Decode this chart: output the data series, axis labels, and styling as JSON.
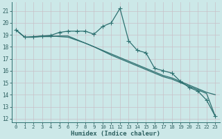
{
  "xlabel": "Humidex (Indice chaleur)",
  "bg_color": "#cce8e8",
  "grid_color": "#d8eded",
  "line_color": "#2d7070",
  "xlim": [
    -0.5,
    23.5
  ],
  "ylim": [
    11.7,
    21.7
  ],
  "yticks": [
    12,
    13,
    14,
    15,
    16,
    17,
    18,
    19,
    20,
    21
  ],
  "xticks": [
    0,
    1,
    2,
    3,
    4,
    5,
    6,
    7,
    8,
    9,
    10,
    11,
    12,
    13,
    14,
    15,
    16,
    17,
    18,
    19,
    20,
    21,
    22,
    23
  ],
  "series1_y": [
    19.4,
    18.8,
    18.8,
    18.9,
    18.95,
    19.2,
    19.3,
    19.3,
    19.3,
    19.05,
    19.7,
    20.0,
    21.2,
    18.5,
    17.7,
    17.5,
    16.2,
    16.0,
    15.8,
    15.1,
    14.6,
    14.3,
    13.55,
    12.2
  ],
  "series2_y": [
    19.4,
    18.8,
    18.85,
    18.9,
    18.9,
    18.85,
    18.8,
    18.55,
    18.3,
    18.0,
    17.7,
    17.4,
    17.1,
    16.8,
    16.5,
    16.2,
    15.9,
    15.6,
    15.4,
    15.1,
    14.8,
    14.5,
    14.2,
    14.0
  ],
  "series3_y": [
    19.4,
    18.8,
    18.8,
    18.85,
    18.85,
    18.9,
    18.9,
    18.6,
    18.3,
    18.0,
    17.65,
    17.3,
    17.0,
    16.7,
    16.4,
    16.1,
    15.8,
    15.5,
    15.3,
    15.0,
    14.7,
    14.4,
    14.1,
    12.2
  ]
}
